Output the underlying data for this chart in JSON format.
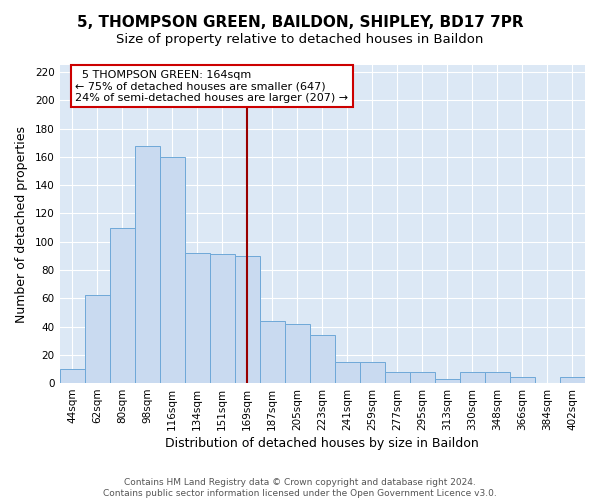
{
  "title": "5, THOMPSON GREEN, BAILDON, SHIPLEY, BD17 7PR",
  "subtitle": "Size of property relative to detached houses in Baildon",
  "xlabel": "Distribution of detached houses by size in Baildon",
  "ylabel": "Number of detached properties",
  "bar_labels": [
    "44sqm",
    "62sqm",
    "80sqm",
    "98sqm",
    "116sqm",
    "134sqm",
    "151sqm",
    "169sqm",
    "187sqm",
    "205sqm",
    "223sqm",
    "241sqm",
    "259sqm",
    "277sqm",
    "295sqm",
    "313sqm",
    "330sqm",
    "348sqm",
    "366sqm",
    "384sqm",
    "402sqm"
  ],
  "bar_values": [
    10,
    62,
    110,
    168,
    160,
    92,
    91,
    90,
    44,
    42,
    34,
    15,
    15,
    8,
    8,
    3,
    8,
    8,
    4,
    0,
    4
  ],
  "bar_color": "#c9daf0",
  "bar_edgecolor": "#6ea8d8",
  "bar_width": 1.0,
  "ylim": [
    0,
    225
  ],
  "yticks": [
    0,
    20,
    40,
    60,
    80,
    100,
    120,
    140,
    160,
    180,
    200,
    220
  ],
  "vline_x_label": "169sqm",
  "vline_x_idx": 7,
  "vline_color": "#990000",
  "annotation_title": "5 THOMPSON GREEN: 164sqm",
  "annotation_line1": "← 75% of detached houses are smaller (647)",
  "annotation_line2": "24% of semi-detached houses are larger (207) →",
  "annotation_box_edgecolor": "#cc0000",
  "footer_line1": "Contains HM Land Registry data © Crown copyright and database right 2024.",
  "footer_line2": "Contains public sector information licensed under the Open Government Licence v3.0.",
  "plot_bg_color": "#dce8f5",
  "fig_bg_color": "#ffffff",
  "grid_color": "#ffffff",
  "title_fontsize": 11,
  "subtitle_fontsize": 9.5,
  "axis_label_fontsize": 9,
  "tick_fontsize": 7.5,
  "annotation_fontsize": 8,
  "footer_fontsize": 6.5
}
